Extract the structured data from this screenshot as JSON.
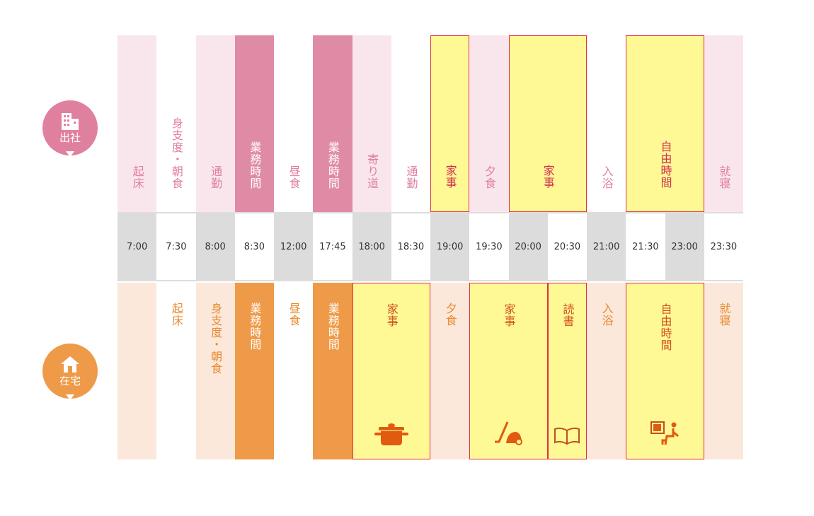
{
  "top": {
    "label": "出社",
    "blocks": [
      "起床",
      "身支度・朝食",
      "通勤",
      "業務時間",
      "昼食",
      "業務時間",
      "寄り道",
      "通勤",
      "家事",
      "夕食",
      "家事",
      "入浴",
      "自由時間",
      "就寝"
    ]
  },
  "times": [
    "7:00",
    "7:30",
    "8:00",
    "8:30",
    "12:00",
    "17:45",
    "18:00",
    "18:30",
    "19:00",
    "19:30",
    "20:00",
    "20:30",
    "21:00",
    "21:30",
    "23:00",
    "23:30"
  ],
  "bottom": {
    "label": "在宅",
    "blocks": [
      "起床",
      "身支度・朝食",
      "業務時間",
      "昼食",
      "業務時間",
      "家事",
      "夕食",
      "家事",
      "読書",
      "入浴",
      "自由時間",
      "就寝"
    ]
  }
}
